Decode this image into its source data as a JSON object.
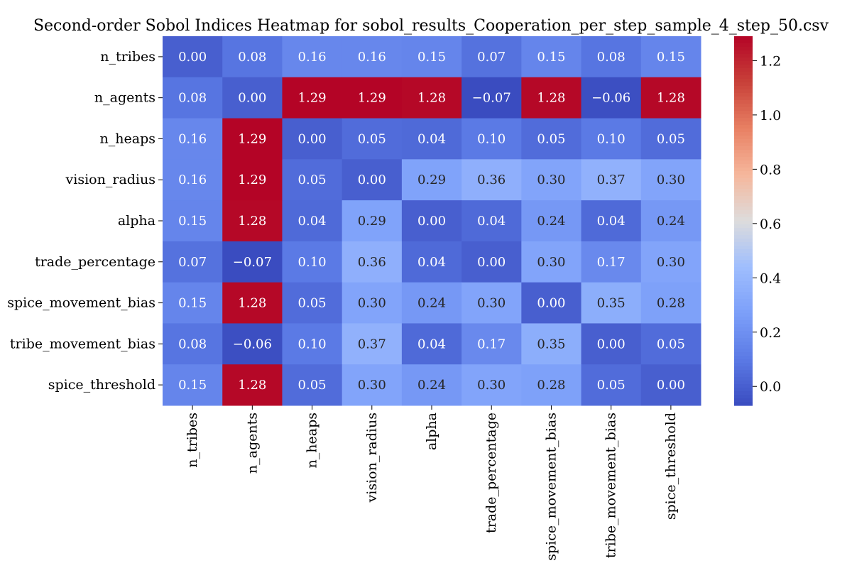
{
  "chart_data": {
    "type": "heatmap",
    "title": "Second-order Sobol Indices Heatmap for sobol_results_Cooperation_per_step_sample_4_step_50.csv",
    "xlabel": "",
    "ylabel": "",
    "rows": [
      "n_tribes",
      "n_agents",
      "n_heaps",
      "vision_radius",
      "alpha",
      "trade_percentage",
      "spice_movement_bias",
      "tribe_movement_bias",
      "spice_threshold"
    ],
    "columns": [
      "n_tribes",
      "n_agents",
      "n_heaps",
      "vision_radius",
      "alpha",
      "trade_percentage",
      "spice_movement_bias",
      "tribe_movement_bias",
      "spice_threshold"
    ],
    "values": [
      [
        0.0,
        0.08,
        0.16,
        0.16,
        0.15,
        0.07,
        0.15,
        0.08,
        0.15
      ],
      [
        0.08,
        0.0,
        1.29,
        1.29,
        1.28,
        -0.07,
        1.28,
        -0.06,
        1.28
      ],
      [
        0.16,
        1.29,
        0.0,
        0.05,
        0.04,
        0.1,
        0.05,
        0.1,
        0.05
      ],
      [
        0.16,
        1.29,
        0.05,
        0.0,
        0.29,
        0.36,
        0.3,
        0.37,
        0.3
      ],
      [
        0.15,
        1.28,
        0.04,
        0.29,
        0.0,
        0.04,
        0.24,
        0.04,
        0.24
      ],
      [
        0.07,
        -0.07,
        0.1,
        0.36,
        0.04,
        0.0,
        0.3,
        0.17,
        0.3
      ],
      [
        0.15,
        1.28,
        0.05,
        0.3,
        0.24,
        0.3,
        0.0,
        0.35,
        0.28
      ],
      [
        0.08,
        -0.06,
        0.1,
        0.37,
        0.04,
        0.17,
        0.35,
        0.0,
        0.05
      ],
      [
        0.15,
        1.28,
        0.05,
        0.3,
        0.24,
        0.3,
        0.28,
        0.05,
        0.0
      ]
    ],
    "colormap": "coolwarm",
    "vmin": -0.07,
    "vmax": 1.29,
    "colorbar_ticks": [
      "0.0",
      "0.2",
      "0.4",
      "0.6",
      "0.8",
      "1.0",
      "1.2"
    ]
  }
}
